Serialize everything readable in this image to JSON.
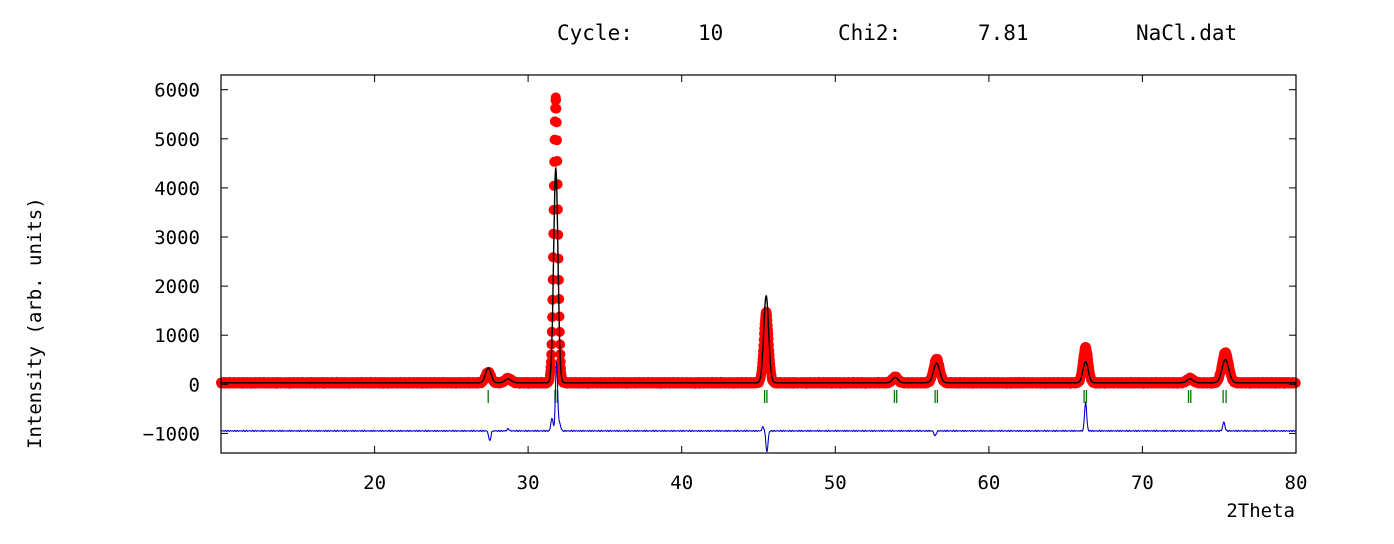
{
  "header": {
    "cycle_label": "Cycle:",
    "cycle_value": "10",
    "chi2_label": "Chi2:",
    "chi2_value": "7.81",
    "filename": "NaCl.dat"
  },
  "chart_data": {
    "type": "line",
    "xlabel": "2Theta",
    "ylabel": "Intensity (arb. units)",
    "xlim": [
      10,
      80
    ],
    "ylim": [
      -1400,
      6300
    ],
    "x_ticks": [
      20,
      30,
      40,
      50,
      60,
      70,
      80
    ],
    "y_ticks": [
      -1000,
      0,
      1000,
      2000,
      3000,
      4000,
      5000,
      6000
    ],
    "grid": false,
    "background_level": 30,
    "difference_offset": -950,
    "colors": {
      "observed": "#ff0000",
      "calculated": "#000000",
      "difference": "#0000cc",
      "bragg_ticks": "#007700",
      "frame": "#000000"
    },
    "peaks": [
      {
        "two_theta": 27.4,
        "observed": 250,
        "calculated": 330,
        "width": 0.18
      },
      {
        "two_theta": 28.7,
        "observed": 120,
        "calculated": 110,
        "width": 0.2
      },
      {
        "two_theta": 31.8,
        "observed": 5850,
        "calculated": 4400,
        "width": 0.14
      },
      {
        "two_theta": 45.5,
        "observed": 1480,
        "calculated": 1800,
        "width": 0.16
      },
      {
        "two_theta": 53.9,
        "observed": 150,
        "calculated": 140,
        "width": 0.18
      },
      {
        "two_theta": 56.6,
        "observed": 520,
        "calculated": 430,
        "width": 0.2
      },
      {
        "two_theta": 66.3,
        "observed": 760,
        "calculated": 460,
        "width": 0.17
      },
      {
        "two_theta": 73.1,
        "observed": 120,
        "calculated": 110,
        "width": 0.2
      },
      {
        "two_theta": 75.4,
        "observed": 650,
        "calculated": 500,
        "width": 0.22
      }
    ],
    "bragg_positions": [
      27.4,
      31.75,
      31.9,
      45.4,
      45.55,
      53.85,
      54.0,
      56.5,
      56.65,
      66.2,
      66.35,
      73.0,
      73.15,
      75.25,
      75.45
    ],
    "difference_features": [
      {
        "two_theta": 27.5,
        "value": -200
      },
      {
        "two_theta": 28.7,
        "value": 40
      },
      {
        "two_theta": 31.55,
        "value": 260
      },
      {
        "two_theta": 31.85,
        "value": 1400
      },
      {
        "two_theta": 32.05,
        "value": 150
      },
      {
        "two_theta": 45.3,
        "value": 80
      },
      {
        "two_theta": 45.55,
        "value": -420
      },
      {
        "two_theta": 56.5,
        "value": -100
      },
      {
        "two_theta": 66.3,
        "value": 580
      },
      {
        "two_theta": 75.3,
        "value": 180
      }
    ]
  }
}
